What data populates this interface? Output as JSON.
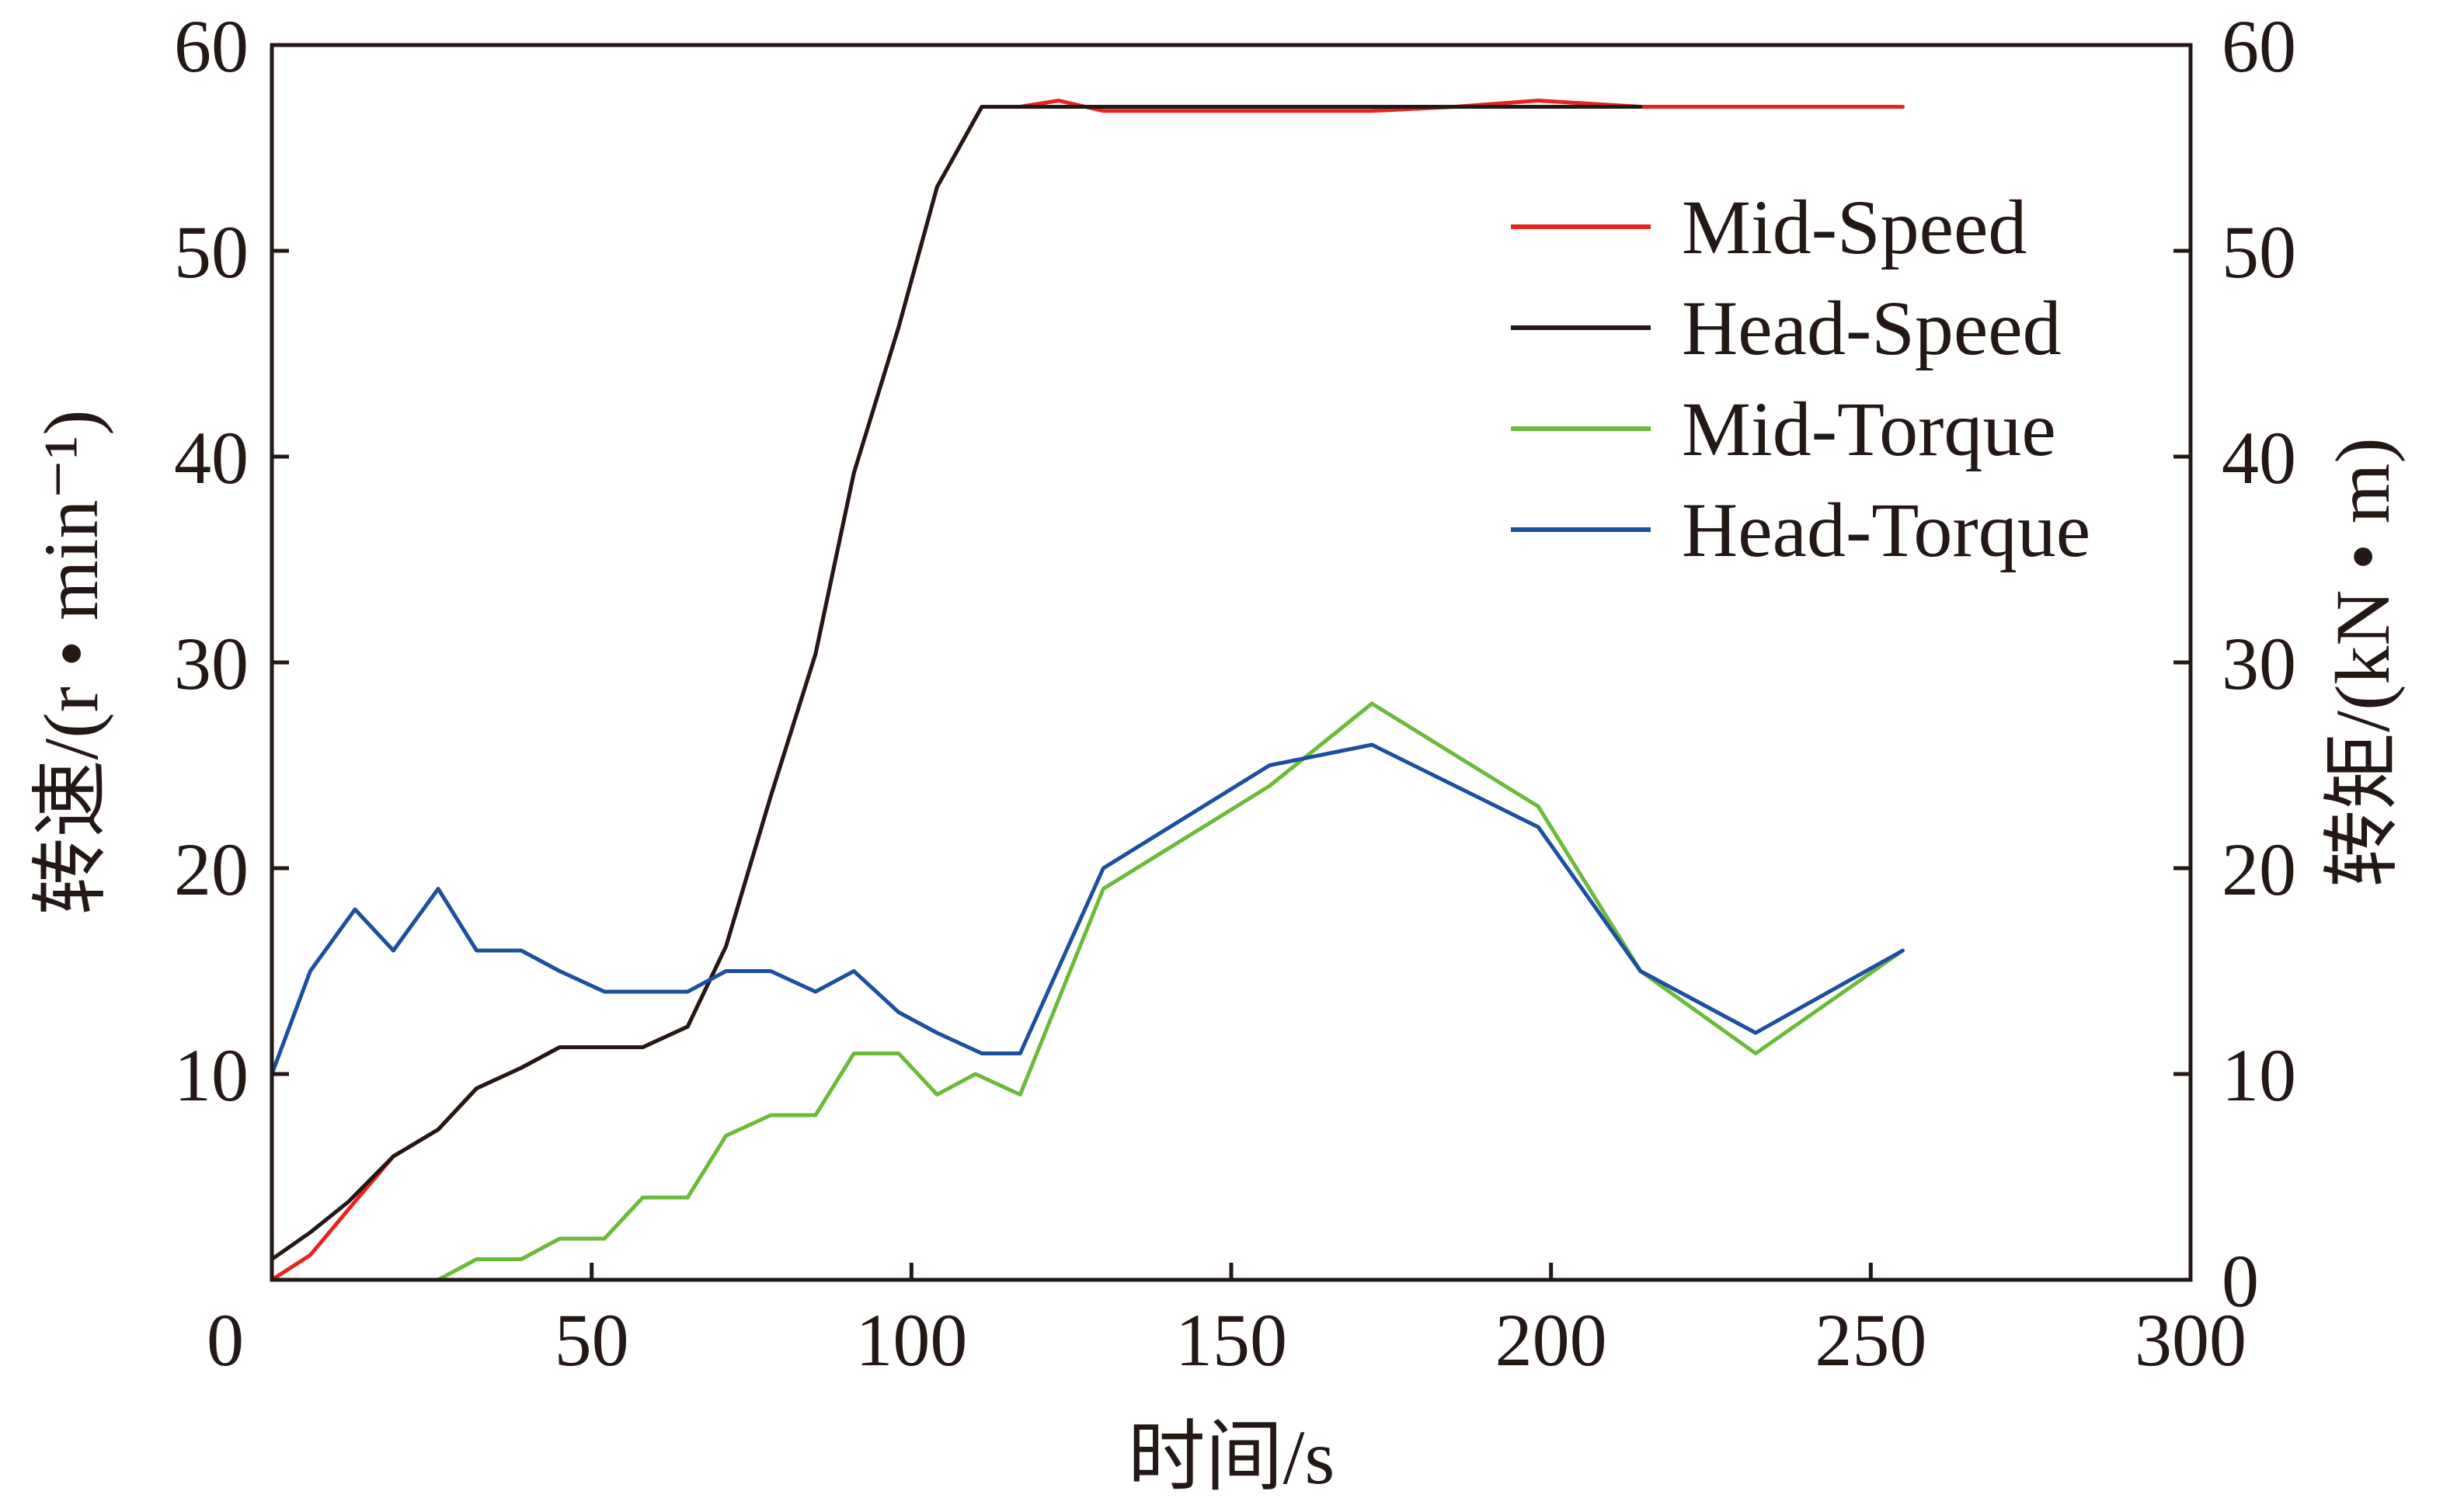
{
  "chart_data": {
    "type": "line",
    "xlabel": "时间/s",
    "ylabel_left": "转速/(r • min⁻¹)",
    "ylabel_right": "转矩/(kN • m)",
    "xlim": [
      0,
      300
    ],
    "ylim_left": [
      0,
      60
    ],
    "ylim_right": [
      0,
      60
    ],
    "x_ticks": [
      "0",
      "50",
      "100",
      "150",
      "200",
      "250",
      "300"
    ],
    "y_ticks_left": [
      "10",
      "20",
      "30",
      "40",
      "50",
      "60"
    ],
    "y_ticks_right": [
      "0",
      "10",
      "20",
      "30",
      "40",
      "50",
      "60"
    ],
    "grid": false,
    "legend_position": "upper-right",
    "series": [
      {
        "name": "Mid-Speed",
        "color": "#e52421",
        "axis": "left",
        "x": [
          0,
          6,
          13,
          19,
          26,
          32,
          39,
          45,
          52,
          58,
          65,
          71,
          78,
          85,
          91,
          98,
          104,
          111,
          117,
          123,
          130,
          136,
          143,
          150,
          156,
          163,
          172,
          185,
          198,
          214,
          230,
          255
        ],
        "y": [
          0,
          1.2,
          3.8,
          6,
          7.3,
          9.3,
          10.3,
          11.3,
          11.3,
          11.3,
          12.3,
          16.2,
          23.5,
          30.4,
          39.2,
          46.3,
          53.1,
          57,
          57,
          57.3,
          56.8,
          56.8,
          56.8,
          56.8,
          56.8,
          56.8,
          56.8,
          57,
          57.3,
          57,
          57,
          57
        ]
      },
      {
        "name": "Head-Speed",
        "color": "#231815",
        "axis": "left",
        "x": [
          0,
          6,
          12,
          19,
          26,
          32,
          39,
          45,
          52,
          58,
          65,
          71,
          78,
          85,
          91,
          98,
          104,
          111,
          117,
          130,
          150,
          172,
          198,
          214
        ],
        "y": [
          1,
          2.3,
          3.8,
          6,
          7.3,
          9.3,
          10.3,
          11.3,
          11.3,
          11.3,
          12.3,
          16.2,
          23.5,
          30.4,
          39.2,
          46.3,
          53.1,
          57,
          57,
          57,
          57,
          57,
          57,
          57
        ]
      },
      {
        "name": "Mid-Torque",
        "color": "#6dba3a",
        "axis": "right",
        "x": [
          26,
          32,
          39,
          45,
          52,
          58,
          65,
          71,
          78,
          85,
          91,
          98,
          104,
          110,
          117,
          130,
          156,
          172,
          198,
          214,
          232,
          255
        ],
        "y": [
          0,
          1,
          1,
          2,
          2,
          4,
          4,
          7,
          8,
          8,
          11,
          11,
          9,
          10,
          9,
          19,
          24,
          28,
          23,
          15,
          11,
          16
        ]
      },
      {
        "name": "Head-Torque",
        "color": "#1d4fa1",
        "axis": "right",
        "x": [
          0,
          6,
          13,
          19,
          26,
          32,
          39,
          45,
          52,
          58,
          65,
          71,
          78,
          85,
          91,
          98,
          104,
          111,
          117,
          130,
          156,
          172,
          198,
          214,
          232,
          255
        ],
        "y": [
          10,
          15,
          18,
          16,
          19,
          16,
          16,
          15,
          14,
          14,
          14,
          15,
          15,
          14,
          15,
          13,
          12,
          11,
          11,
          20,
          25,
          26,
          22,
          15,
          12,
          16
        ]
      }
    ]
  }
}
